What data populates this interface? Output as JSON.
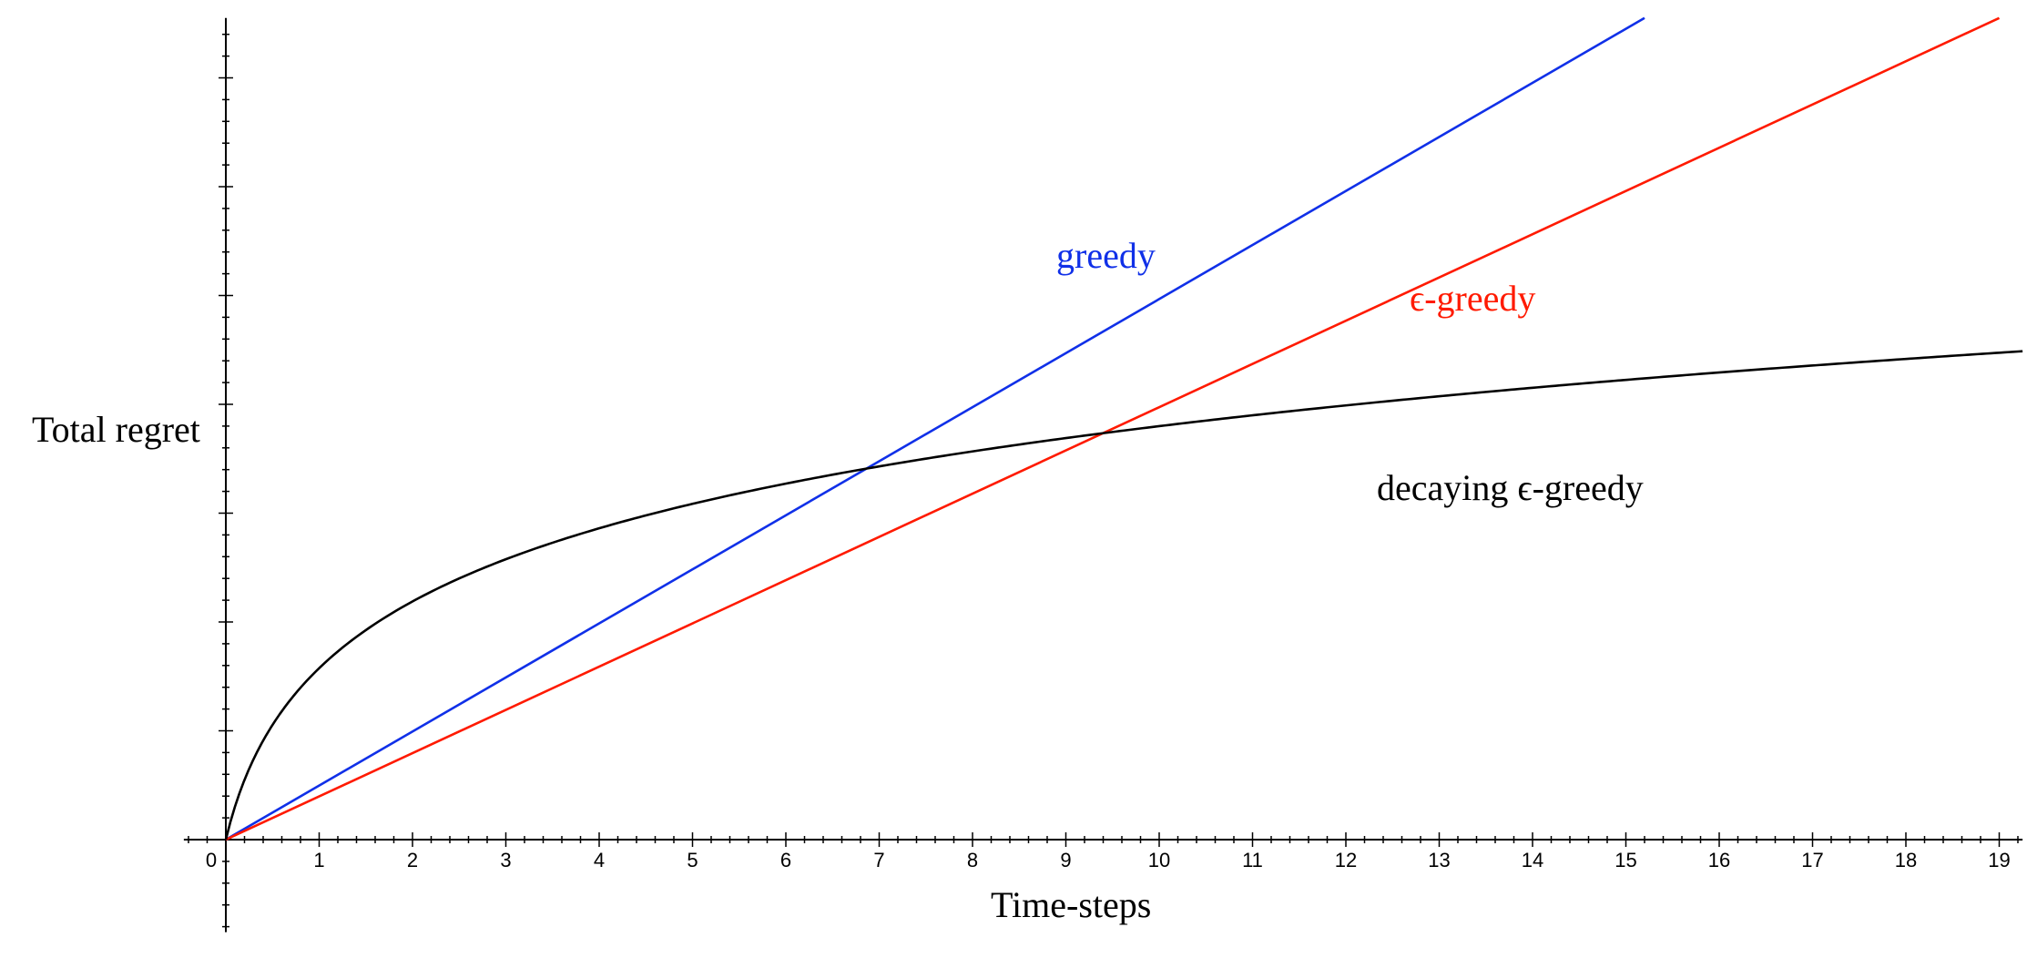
{
  "chart_data": {
    "type": "line",
    "title": "",
    "xlabel": "Time-steps",
    "ylabel": "Total regret",
    "xlim": [
      -0.45,
      19.25
    ],
    "ylim": [
      -0.85,
      7.55
    ],
    "x_ticks": [
      0,
      1,
      2,
      3,
      4,
      5,
      6,
      7,
      8,
      9,
      10,
      11,
      12,
      13,
      14,
      15,
      16,
      17,
      18,
      19
    ],
    "x_tick_labels": [
      "0",
      "1",
      "2",
      "3",
      "4",
      "5",
      "6",
      "7",
      "8",
      "9",
      "10",
      "11",
      "12",
      "13",
      "14",
      "15",
      "16",
      "17",
      "18",
      "19"
    ],
    "y_tick_labels_shown": false,
    "grid": false,
    "legend": "inline labels",
    "colors": {
      "greedy": "#1030e8",
      "epsilon_greedy": "#ff1a00",
      "decaying": "#000000"
    },
    "series": [
      {
        "name": "greedy",
        "label": "greedy",
        "form": "linear",
        "x": [
          0,
          15.2
        ],
        "values": [
          0,
          7.55
        ]
      },
      {
        "name": "ε-greedy",
        "label": "ϵ-greedy",
        "form": "linear",
        "x": [
          0,
          19
        ],
        "values": [
          0,
          7.55
        ]
      },
      {
        "name": "decaying ε-greedy",
        "label": "decaying ϵ-greedy",
        "form": "log",
        "x": [
          0,
          0.2,
          0.5,
          1,
          2,
          3,
          4,
          5,
          6,
          7,
          8,
          9,
          10,
          11,
          12,
          13,
          14,
          15,
          16,
          17,
          18,
          19,
          19.25
        ],
        "values": [
          0,
          0.401,
          0.891,
          1.463,
          2.141,
          2.553,
          2.85,
          3.081,
          3.271,
          3.432,
          3.572,
          3.695,
          3.805,
          3.905,
          3.995,
          4.079,
          4.156,
          4.228,
          4.295,
          4.358,
          4.418,
          4.474,
          4.488
        ]
      }
    ]
  }
}
